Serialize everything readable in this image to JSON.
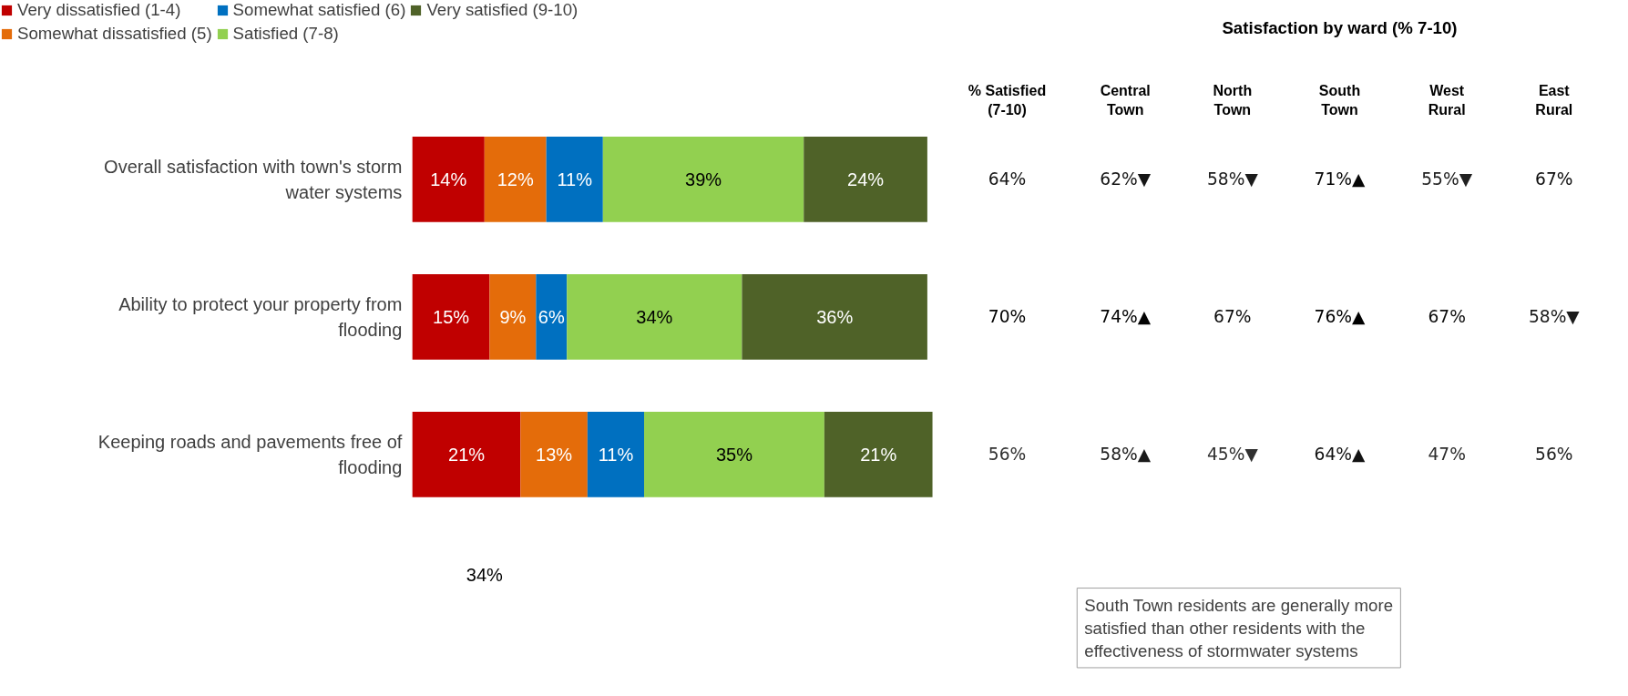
{
  "chart_data": [
    {
      "type": "bar",
      "orientation": "horizontal",
      "stacked": true,
      "legend": "top left",
      "categories": [
        "Overall satisfaction with town's storm water systems",
        "Ability to protect your property from flooding",
        "Keeping roads and pavements free of flooding"
      ],
      "series": [
        {
          "name": "Very dissatisfied (1-4)",
          "color": "#c00000",
          "values": [
            14,
            15,
            21
          ],
          "value_labels": [
            "14%",
            "15%",
            "21%"
          ]
        },
        {
          "name": "Somewhat dissatisfied (5)",
          "color": "#e46c0a",
          "values": [
            12,
            9,
            13
          ],
          "value_labels": [
            "12%",
            "9%",
            "13%"
          ]
        },
        {
          "name": "Somewhat satisfied (6)",
          "color": "#0070c0",
          "values": [
            11,
            6,
            11
          ],
          "value_labels": [
            "11%",
            "6%",
            "11%"
          ]
        },
        {
          "name": "Satisfied (7-8)",
          "color": "#92d050",
          "values": [
            39,
            34,
            35
          ],
          "value_labels": [
            "39%",
            "34%",
            "35%"
          ]
        },
        {
          "name": "Very satisfied (9-10)",
          "color": "#4f6228",
          "values": [
            24,
            36,
            21
          ],
          "value_labels": [
            "24%",
            "36%",
            "21%"
          ]
        }
      ],
      "annotations": [
        "34%"
      ]
    },
    {
      "type": "heatmap",
      "categories": [
        "% Satisfied (7-10)"
      ],
      "y_categories": [
        null,
        null,
        null
      ],
      "cells": [
        [
          64
        ],
        [
          70
        ],
        [
          56
        ]
      ],
      "cell_labels": [
        [
          "64%"
        ],
        [
          "70%"
        ],
        [
          "56%"
        ]
      ]
    },
    {
      "type": "heatmap",
      "title": "Satisfaction by ward (% 7-10)",
      "categories": [
        "Central Town",
        "North Town",
        "South Town",
        "West Rural",
        "East Rural"
      ],
      "y_categories": [
        null,
        null,
        null
      ],
      "cells": [
        [
          62,
          58,
          71,
          55,
          67
        ],
        [
          74,
          67,
          76,
          67,
          58
        ],
        [
          58,
          45,
          64,
          47,
          56
        ]
      ],
      "cell_labels": [
        [
          "62%▼",
          "58%▼",
          "71%▲",
          "55%▼",
          "67%"
        ],
        [
          "74%▲",
          "67%",
          "76%▲",
          "67%",
          "58%▼"
        ],
        [
          "58%▲",
          "45%▼",
          "64%▲",
          "47%",
          "56%"
        ]
      ],
      "annotations": [
        "South Town residents are generally more satisfied than other residents with the effectiveness of stormwater systems"
      ]
    }
  ]
}
